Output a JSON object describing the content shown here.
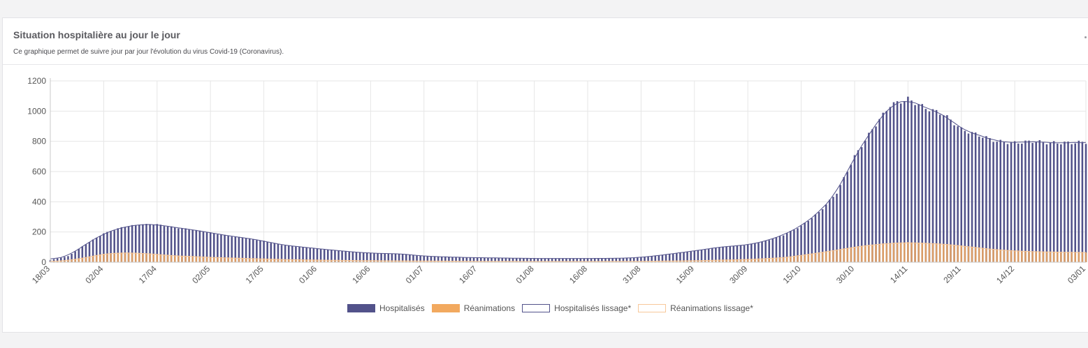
{
  "card": {
    "title": "Situation hospitalière au jour le jour",
    "subtitle": "Ce graphique permet de suivre jour par jour l'évolution du virus Covid-19 (Coronavirus)."
  },
  "colors": {
    "hospitalises": "#52528a",
    "reanimations": "#f2a95f",
    "hosp_lissage": "#52528a",
    "rea_lissage": "#f7c89a",
    "grid": "#e6e6e6"
  },
  "chart_data": {
    "type": "bar",
    "grid": true,
    "legend_position": "bottom-center",
    "ylim": [
      0,
      1200
    ],
    "yticks": [
      0,
      200,
      400,
      600,
      800,
      1000,
      1200
    ],
    "x_range": [
      "18/03",
      "03/01"
    ],
    "xticks": [
      "18/03",
      "02/04",
      "17/04",
      "02/05",
      "17/05",
      "01/06",
      "16/06",
      "01/07",
      "16/07",
      "01/08",
      "16/08",
      "31/08",
      "15/09",
      "30/09",
      "15/10",
      "30/10",
      "14/11",
      "29/11",
      "14/12",
      "03/01"
    ],
    "series": [
      {
        "name": "Hospitalisés",
        "role": "bars",
        "keyframes": [
          [
            "18/03",
            15
          ],
          [
            "23/03",
            40
          ],
          [
            "28/03",
            120
          ],
          [
            "02/04",
            190
          ],
          [
            "07/04",
            230
          ],
          [
            "12/04",
            250
          ],
          [
            "17/04",
            250
          ],
          [
            "22/04",
            230
          ],
          [
            "27/04",
            215
          ],
          [
            "02/05",
            195
          ],
          [
            "07/05",
            175
          ],
          [
            "12/05",
            160
          ],
          [
            "17/05",
            140
          ],
          [
            "22/05",
            115
          ],
          [
            "01/06",
            90
          ],
          [
            "10/06",
            70
          ],
          [
            "16/06",
            60
          ],
          [
            "25/06",
            55
          ],
          [
            "01/07",
            40
          ],
          [
            "10/07",
            33
          ],
          [
            "16/07",
            30
          ],
          [
            "01/08",
            25
          ],
          [
            "16/08",
            25
          ],
          [
            "25/08",
            26
          ],
          [
            "31/08",
            32
          ],
          [
            "05/09",
            45
          ],
          [
            "15/09",
            75
          ],
          [
            "22/09",
            100
          ],
          [
            "30/09",
            115
          ],
          [
            "05/10",
            140
          ],
          [
            "10/10",
            180
          ],
          [
            "15/10",
            240
          ],
          [
            "20/10",
            330
          ],
          [
            "25/10",
            460
          ],
          [
            "30/10",
            700
          ],
          [
            "04/11",
            880
          ],
          [
            "09/11",
            1040
          ],
          [
            "14/11",
            1080
          ],
          [
            "19/11",
            1020
          ],
          [
            "24/11",
            980
          ],
          [
            "29/11",
            880
          ],
          [
            "04/12",
            840
          ],
          [
            "09/12",
            800
          ],
          [
            "14/12",
            790
          ],
          [
            "19/12",
            800
          ],
          [
            "24/12",
            790
          ],
          [
            "29/12",
            790
          ],
          [
            "03/01",
            795
          ]
        ]
      },
      {
        "name": "Réanimations",
        "role": "bars",
        "keyframes": [
          [
            "18/03",
            4
          ],
          [
            "23/03",
            12
          ],
          [
            "28/03",
            30
          ],
          [
            "02/04",
            55
          ],
          [
            "07/04",
            62
          ],
          [
            "12/04",
            60
          ],
          [
            "17/04",
            52
          ],
          [
            "22/04",
            42
          ],
          [
            "27/04",
            38
          ],
          [
            "02/05",
            32
          ],
          [
            "12/05",
            25
          ],
          [
            "22/05",
            18
          ],
          [
            "01/06",
            14
          ],
          [
            "16/06",
            10
          ],
          [
            "01/07",
            8
          ],
          [
            "16/07",
            6
          ],
          [
            "01/08",
            5
          ],
          [
            "16/08",
            5
          ],
          [
            "31/08",
            6
          ],
          [
            "15/09",
            10
          ],
          [
            "30/09",
            18
          ],
          [
            "10/10",
            30
          ],
          [
            "15/10",
            45
          ],
          [
            "25/10",
            80
          ],
          [
            "30/10",
            100
          ],
          [
            "04/11",
            115
          ],
          [
            "09/11",
            125
          ],
          [
            "14/11",
            130
          ],
          [
            "19/11",
            125
          ],
          [
            "24/11",
            120
          ],
          [
            "29/11",
            108
          ],
          [
            "04/12",
            95
          ],
          [
            "09/12",
            82
          ],
          [
            "14/12",
            75
          ],
          [
            "19/12",
            70
          ],
          [
            "24/12",
            68
          ],
          [
            "29/12",
            65
          ],
          [
            "03/01",
            65
          ]
        ]
      },
      {
        "name": "Hospitalisés lissage*",
        "role": "line",
        "smooth_of": "Hospitalisés"
      },
      {
        "name": "Réanimations lissage*",
        "role": "line",
        "smooth_of": "Réanimations"
      }
    ]
  }
}
